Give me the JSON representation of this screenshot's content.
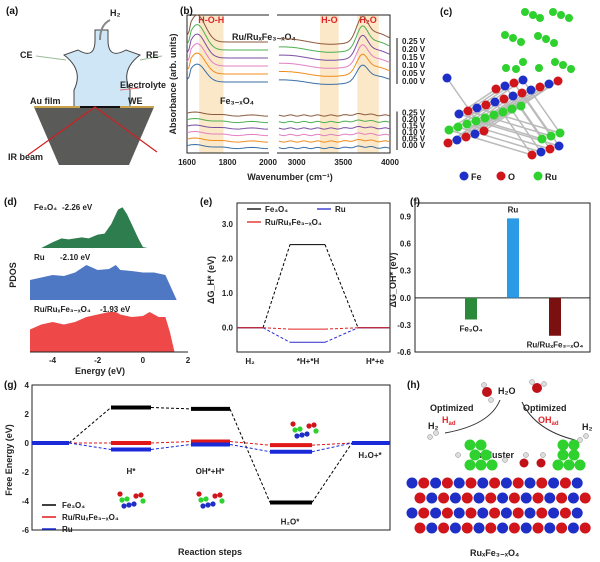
{
  "panels": {
    "a": "(a)",
    "b": "(b)",
    "c": "(c)",
    "d": "(d)",
    "e": "(e)",
    "f": "(f)",
    "g": "(g)",
    "h": "(h)"
  },
  "cell_diagram": {
    "h2": "H₂",
    "ce": "CE",
    "re": "RE",
    "electrolyte": "Electrolyte",
    "au_film": "Au film",
    "we": "WE",
    "ir_beam": "IR beam"
  },
  "crystal": {
    "legend": [
      {
        "label": "Fe",
        "color": "#1e2fc8"
      },
      {
        "label": "O",
        "color": "#d0151b"
      },
      {
        "label": "Ru",
        "color": "#2ed12e"
      }
    ]
  },
  "scheme": {
    "h2o": "H₂O",
    "h2_left": "H₂",
    "h2_right": "H₂",
    "optimized_left": "Optimized",
    "had": "H",
    "had_sub": "ad",
    "optimized_right": "Optimized",
    "ohad": "OH",
    "ohad_sub": "ad",
    "ru_cluster": "Ru cluster",
    "substrate": "RuₓFe₃₋ₓO₄"
  },
  "chart_data": [
    {
      "panel": "b",
      "type": "line",
      "xlabel": "Wavenumber (cm⁻¹)",
      "ylabel": "Absorbance (arb. units)",
      "x_ticks": [
        "1600",
        "1800",
        "2000",
        "3000",
        "3500",
        "4000"
      ],
      "xlim_left": [
        1600,
        2000
      ],
      "xlim_right": [
        2800,
        4000
      ],
      "bands": [
        {
          "label": "H-O-H",
          "range": [
            1660,
            1780
          ]
        },
        {
          "label": "H-O",
          "range": [
            3250,
            3450
          ]
        },
        {
          "label": "H₂O",
          "range": [
            3650,
            3880
          ]
        }
      ],
      "groups": [
        {
          "name": "Ru/RuₓFe₃₋ₓO₄",
          "potentials": [
            "0.25 V",
            "0.20 V",
            "0.15 V",
            "0.10 V",
            "0.05 V",
            "0.00 V"
          ],
          "peak_heights": [
            0.9,
            0.85,
            0.8,
            0.75,
            0.7,
            0.6
          ]
        },
        {
          "name": "Fe₃₋ₓO₄",
          "potentials": [
            "0.25 V",
            "0.20 V",
            "0.15 V",
            "0.10 V",
            "0.05 V",
            "0.00 V"
          ],
          "peak_heights": [
            0.15,
            0.15,
            0.15,
            0.15,
            0.15,
            0.15
          ]
        }
      ],
      "series_colors": [
        "#8b5a3c",
        "#4caf50",
        "#7b4fa0",
        "#e37fc0",
        "#f08c1e",
        "#3a6ea5"
      ]
    },
    {
      "panel": "d",
      "type": "area",
      "xlabel": "Energy (eV)",
      "ylabel": "PDOS",
      "xlim": [
        -5,
        2
      ],
      "x_ticks": [
        "-4",
        "-2",
        "0",
        "2"
      ],
      "series": [
        {
          "name": "Fe₃O₄",
          "d_band_center": "-2.26 eV",
          "color": "#2e7d4f",
          "x": [
            -5,
            -4.5,
            -4,
            -3.6,
            -3.3,
            -3,
            -2.7,
            -2.4,
            -2,
            -1.7,
            -1.4,
            -1.1,
            -0.9,
            -0.7,
            -0.5,
            -0.2,
            0,
            0.2,
            2
          ],
          "y": [
            0,
            0,
            0.12,
            0.2,
            0.18,
            0.2,
            0.22,
            0.2,
            0.28,
            0.3,
            0.5,
            0.8,
            0.85,
            0.7,
            0.5,
            0.2,
            0.02,
            0,
            0
          ]
        },
        {
          "name": "Ru",
          "d_band_center": "-2.10 eV",
          "color": "#4f78c4",
          "x": [
            -5,
            -4.5,
            -4,
            -3.5,
            -3,
            -2.5,
            -2,
            -1.5,
            -1.2,
            -1,
            -0.5,
            0,
            0.5,
            1,
            1.2,
            1.5,
            2
          ],
          "y": [
            0.4,
            0.45,
            0.5,
            0.48,
            0.55,
            0.7,
            0.6,
            0.62,
            0.7,
            0.6,
            0.58,
            0.55,
            0.55,
            0.5,
            0.3,
            0,
            0
          ]
        },
        {
          "name": "Ru/RuₓFe₃₋ₓO₄",
          "d_band_center": "-1.93 eV",
          "color": "#ee4848",
          "x": [
            -5,
            -4.5,
            -4,
            -3.5,
            -3,
            -2.5,
            -2,
            -1.5,
            -1.2,
            -1,
            -0.5,
            0,
            0.3,
            0.7,
            1,
            1.2,
            1.4,
            2
          ],
          "y": [
            0.45,
            0.55,
            0.6,
            0.55,
            0.6,
            0.7,
            0.75,
            0.8,
            0.8,
            0.75,
            0.7,
            0.72,
            0.8,
            0.7,
            0.7,
            0.4,
            0,
            0
          ]
        }
      ]
    },
    {
      "panel": "e",
      "type": "line",
      "ylabel": "ΔG_H* (eV)",
      "ylim": [
        -0.7,
        3.6
      ],
      "y_ticks": [
        "0.0",
        "1.0",
        "2.0",
        "3.0"
      ],
      "categories": [
        "H₂",
        "*H+*H",
        "H*+e"
      ],
      "series": [
        {
          "name": "Fe₃O₄",
          "color": "#000000",
          "values": [
            0,
            2.4,
            0
          ]
        },
        {
          "name": "Ru",
          "color": "#2a2ad0",
          "values": [
            0,
            -0.42,
            0
          ]
        },
        {
          "name": "Ru/RuₓFe₃₋ₓO₄",
          "color": "#e02020",
          "values": [
            0,
            -0.04,
            0
          ]
        }
      ],
      "legend": "top"
    },
    {
      "panel": "f",
      "type": "bar",
      "ylabel": "ΔG_OH* (eV)",
      "ylim": [
        -0.6,
        1.05
      ],
      "y_ticks": [
        "-0.6",
        "-0.3",
        "0.0",
        "0.3",
        "0.6",
        "0.9"
      ],
      "categories": [
        "Fe₃O₄",
        "Ru",
        "Ru/RuₓFe₃₋ₓO₄"
      ],
      "values": [
        -0.24,
        0.88,
        -0.42
      ],
      "colors": [
        "#2a8a3a",
        "#2b9be8",
        "#7a1010"
      ]
    },
    {
      "panel": "g",
      "type": "line",
      "ylabel": "Free Energy (eV)",
      "xlabel": "Reaction steps",
      "ylim": [
        -6,
        4
      ],
      "y_ticks": [
        "-6",
        "-4",
        "-2",
        "0",
        "2",
        "4"
      ],
      "steps": [
        "",
        "H*",
        "OH*+H*",
        "H₂O*",
        "H₂O+*"
      ],
      "series": [
        {
          "name": "Fe₃O₄",
          "color": "#000000",
          "values": [
            0,
            2.45,
            2.35,
            -4.1,
            0
          ]
        },
        {
          "name": "Ru/RuₓFe₃₋ₓO₄",
          "color": "#e01818",
          "values": [
            0,
            0,
            0.1,
            -0.15,
            0
          ]
        },
        {
          "name": "Ru",
          "color": "#1a2ad8",
          "values": [
            0,
            -0.45,
            -0.1,
            -0.6,
            0
          ]
        }
      ],
      "legend": "bottom-left"
    }
  ]
}
